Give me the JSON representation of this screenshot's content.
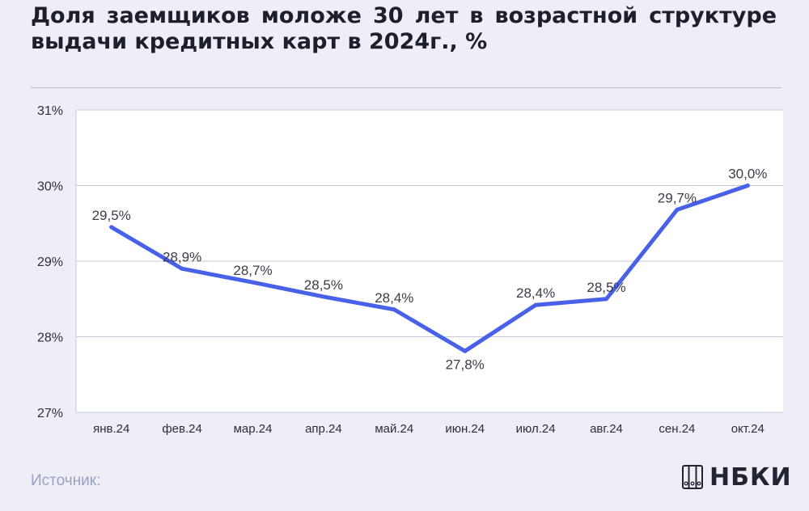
{
  "title": "Доля заемщиков моложе 30 лет в возрастной структуре выдачи кредитных карт в 2024г., %",
  "source_label": "Источник:",
  "logo": {
    "text": "НБКИ",
    "icon": "nbki-logo-icon"
  },
  "colors": {
    "line": "#4761e8",
    "grid": "#c5c8dc",
    "background": "#eeeff6",
    "plot_background": "#ffffff"
  },
  "chart_data": {
    "type": "line",
    "categories": [
      "янв.24",
      "фев.24",
      "мар.24",
      "апр.24",
      "май.24",
      "июн.24",
      "июл.24",
      "авг.24",
      "сен.24",
      "окт.24"
    ],
    "series": [
      {
        "values": [
          29.45,
          28.9,
          28.72,
          28.53,
          28.36,
          27.81,
          28.42,
          28.5,
          29.68,
          30.0
        ]
      }
    ],
    "data_labels": [
      "29,5%",
      "28,9%",
      "28,7%",
      "28,5%",
      "28,4%",
      "27,8%",
      "28,4%",
      "28,5%",
      "29,7%",
      "30,0%"
    ],
    "ylim": [
      27,
      31
    ],
    "y_ticks": [
      27,
      28,
      29,
      30,
      31
    ],
    "y_tick_labels": [
      "27%",
      "28%",
      "29%",
      "30%",
      "31%"
    ],
    "grid": true,
    "legend": "none"
  }
}
